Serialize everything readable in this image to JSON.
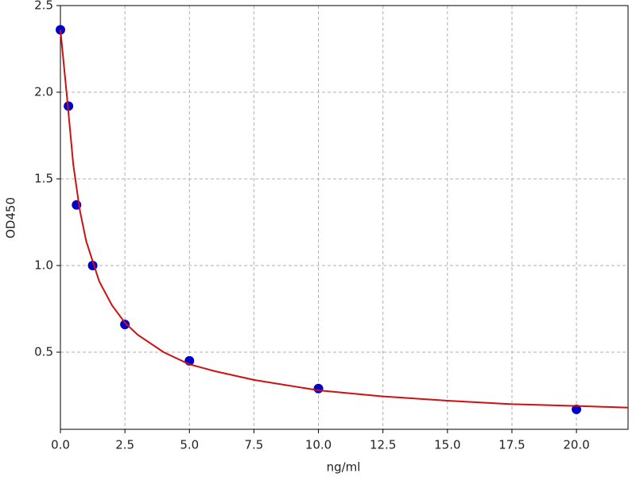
{
  "chart_data": {
    "type": "scatter",
    "x_label": "ng/ml",
    "y_label": "OD450",
    "xlim": [
      0,
      22
    ],
    "ylim": [
      0.055,
      2.5
    ],
    "xticks": [
      {
        "value": 0,
        "label": "0.0"
      },
      2.5,
      {
        "value": 5,
        "label": "5.0"
      },
      7.5,
      {
        "value": 10,
        "label": "10.0"
      },
      12.5,
      {
        "value": 15,
        "label": "15.0"
      },
      17.5,
      {
        "value": 20,
        "label": "20.0"
      }
    ],
    "yticks": [
      0.5,
      {
        "value": 1,
        "label": "1.0"
      },
      1.5,
      {
        "value": 2,
        "label": "2.0"
      },
      2.5
    ],
    "grid": true,
    "series": [
      {
        "type": "scatter",
        "color": "#0000cc",
        "x": [
          0,
          0.3125,
          0.625,
          1.25,
          2.5,
          5,
          10,
          20
        ],
        "values": [
          2.36,
          1.92,
          1.35,
          1.0,
          0.66,
          0.45,
          0.29,
          0.17
        ]
      },
      {
        "type": "line",
        "color": "#cc1111",
        "x": [
          0,
          0.25,
          0.5,
          0.75,
          1,
          1.5,
          2,
          2.5,
          3,
          4,
          5,
          6,
          7.5,
          10,
          12.5,
          15,
          17.5,
          20,
          22
        ],
        "values": [
          2.36,
          1.98,
          1.58,
          1.32,
          1.14,
          0.91,
          0.77,
          0.67,
          0.6,
          0.5,
          0.43,
          0.39,
          0.34,
          0.28,
          0.245,
          0.22,
          0.2,
          0.19,
          0.18
        ]
      }
    ]
  }
}
